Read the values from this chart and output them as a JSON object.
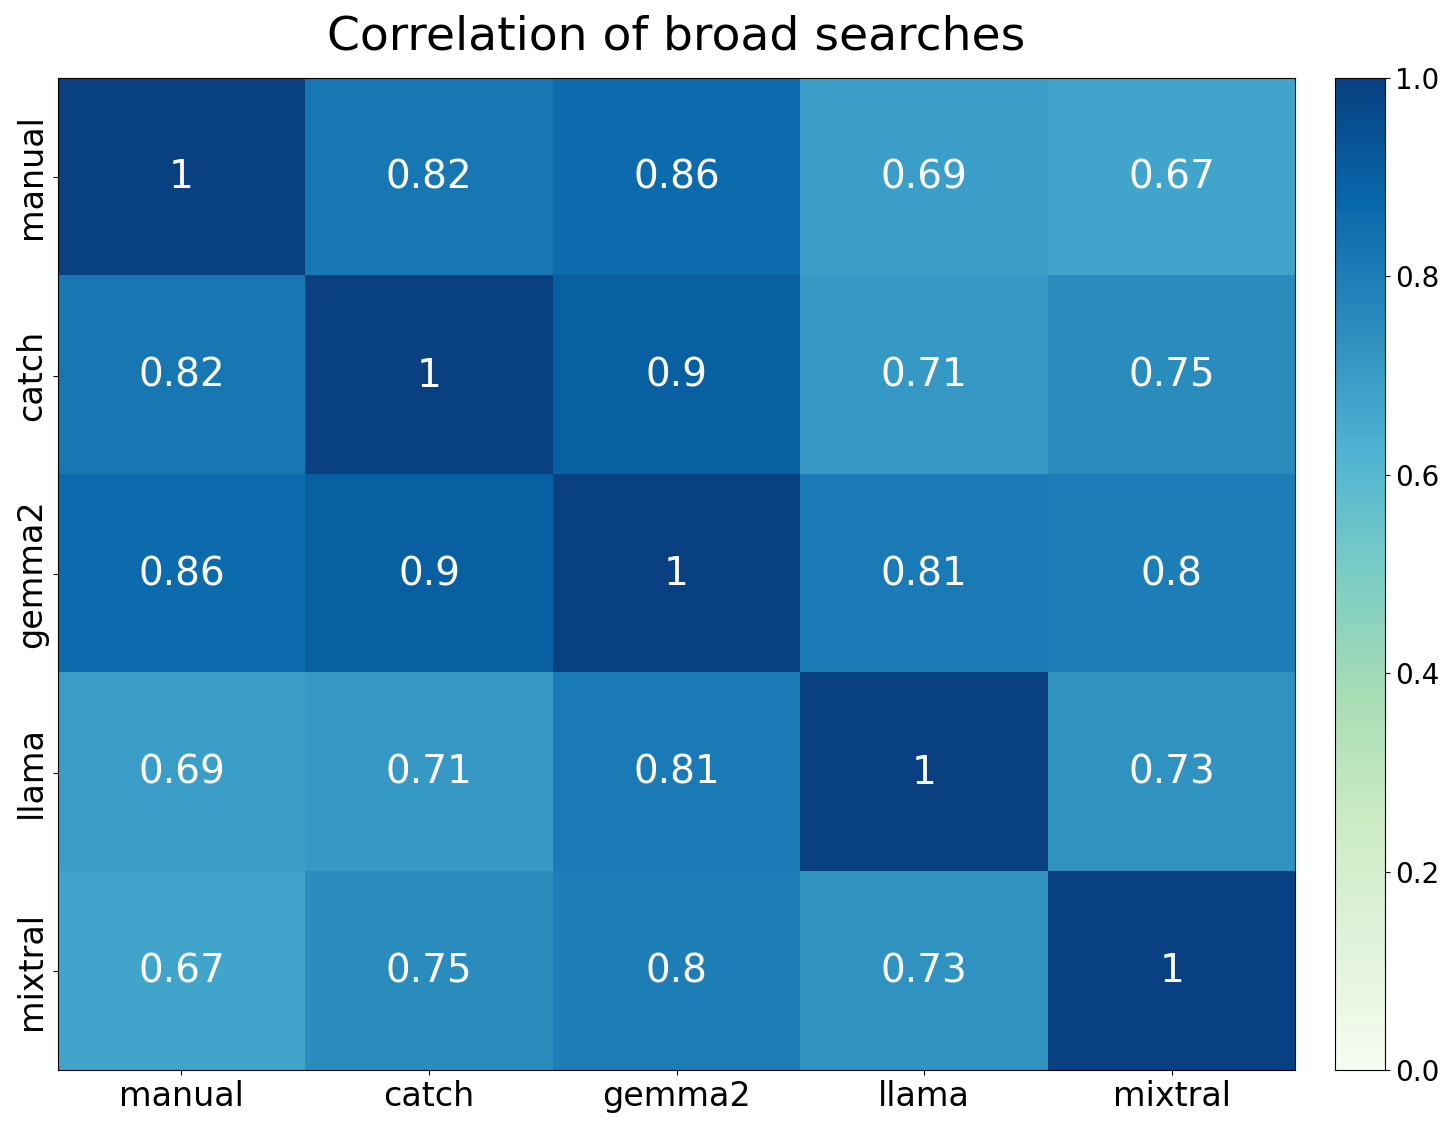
{
  "title": "Correlation of broad searches",
  "labels": [
    "manual",
    "catch",
    "gemma2",
    "llama",
    "mixtral"
  ],
  "matrix": [
    [
      1.0,
      0.82,
      0.86,
      0.69,
      0.67
    ],
    [
      0.82,
      1.0,
      0.9,
      0.71,
      0.75
    ],
    [
      0.86,
      0.9,
      1.0,
      0.81,
      0.8
    ],
    [
      0.69,
      0.71,
      0.81,
      1.0,
      0.73
    ],
    [
      0.67,
      0.75,
      0.8,
      0.73,
      1.0
    ]
  ],
  "cmap": "GnBu",
  "vmin": 0.0,
  "vmax": 1.0,
  "title_fontsize": 34,
  "tick_fontsize": 24,
  "annot_fontsize": 28,
  "text_color": "white",
  "cbar_tick_fontsize": 20
}
